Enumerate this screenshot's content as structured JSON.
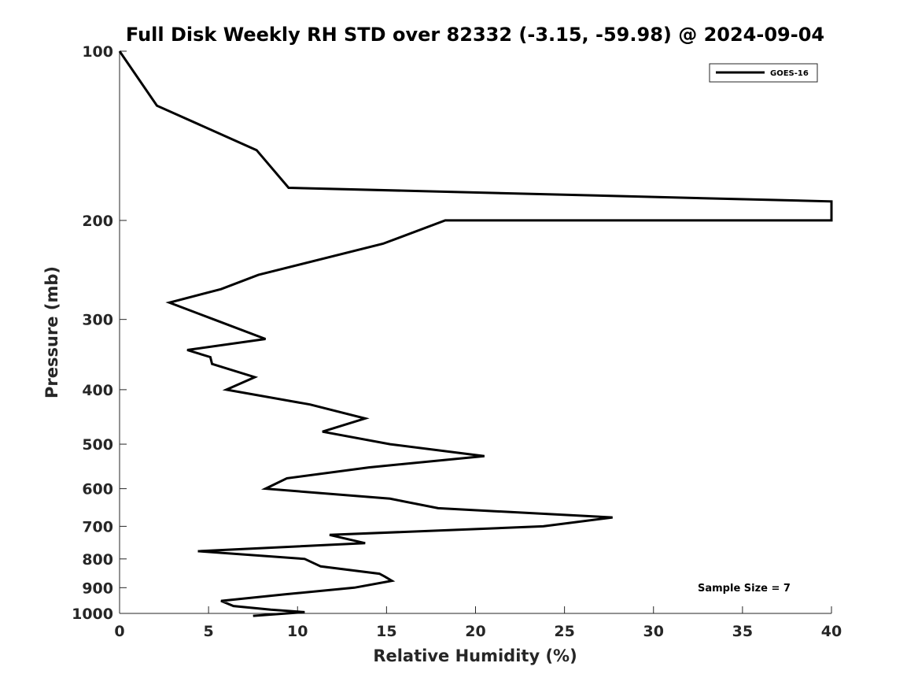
{
  "chart_data": {
    "type": "line",
    "title": "Full Disk Weekly RH STD over 82332 (-3.15, -59.98) @ 2024-09-04",
    "xlabel": "Relative Humidity (%)",
    "ylabel": "Pressure (mb)",
    "xlim": [
      0,
      40
    ],
    "ylim": [
      100,
      1000
    ],
    "yscale": "log",
    "yreversed": true,
    "x_ticks": [
      "0",
      "5",
      "10",
      "15",
      "20",
      "25",
      "30",
      "35",
      "40"
    ],
    "y_ticks": [
      "100",
      "200",
      "300",
      "400",
      "500",
      "600",
      "700",
      "800",
      "900",
      "1000"
    ],
    "legend": {
      "placement": "top-right",
      "entries": [
        "GOES-16"
      ]
    },
    "annotation": "Sample Size = 7",
    "series": [
      {
        "name": "GOES-16",
        "color": "#000000",
        "points": [
          [
            0.0,
            100
          ],
          [
            2.1,
            125
          ],
          [
            7.7,
            150
          ],
          [
            9.5,
            175
          ],
          [
            40.0,
            185
          ],
          [
            40.0,
            200
          ],
          [
            18.3,
            200
          ],
          [
            14.8,
            220
          ],
          [
            7.8,
            250
          ],
          [
            5.7,
            265
          ],
          [
            2.8,
            280
          ],
          [
            5.3,
            300
          ],
          [
            8.2,
            325
          ],
          [
            3.8,
            340
          ],
          [
            5.1,
            350
          ],
          [
            5.2,
            360
          ],
          [
            7.6,
            380
          ],
          [
            6.0,
            400
          ],
          [
            10.7,
            425
          ],
          [
            13.8,
            450
          ],
          [
            11.4,
            475
          ],
          [
            15.2,
            500
          ],
          [
            20.5,
            525
          ],
          [
            14.0,
            550
          ],
          [
            9.4,
            575
          ],
          [
            8.2,
            600
          ],
          [
            15.2,
            625
          ],
          [
            17.9,
            650
          ],
          [
            27.7,
            675
          ],
          [
            23.8,
            700
          ],
          [
            11.8,
            725
          ],
          [
            13.8,
            750
          ],
          [
            4.4,
            775
          ],
          [
            10.4,
            800
          ],
          [
            11.3,
            825
          ],
          [
            14.6,
            850
          ],
          [
            14.9,
            860
          ],
          [
            15.3,
            875
          ],
          [
            13.2,
            900
          ],
          [
            9.3,
            925
          ],
          [
            5.7,
            950
          ],
          [
            6.4,
            970
          ],
          [
            8.5,
            985
          ],
          [
            10.4,
            995
          ],
          [
            7.5,
            1010
          ]
        ]
      }
    ]
  }
}
